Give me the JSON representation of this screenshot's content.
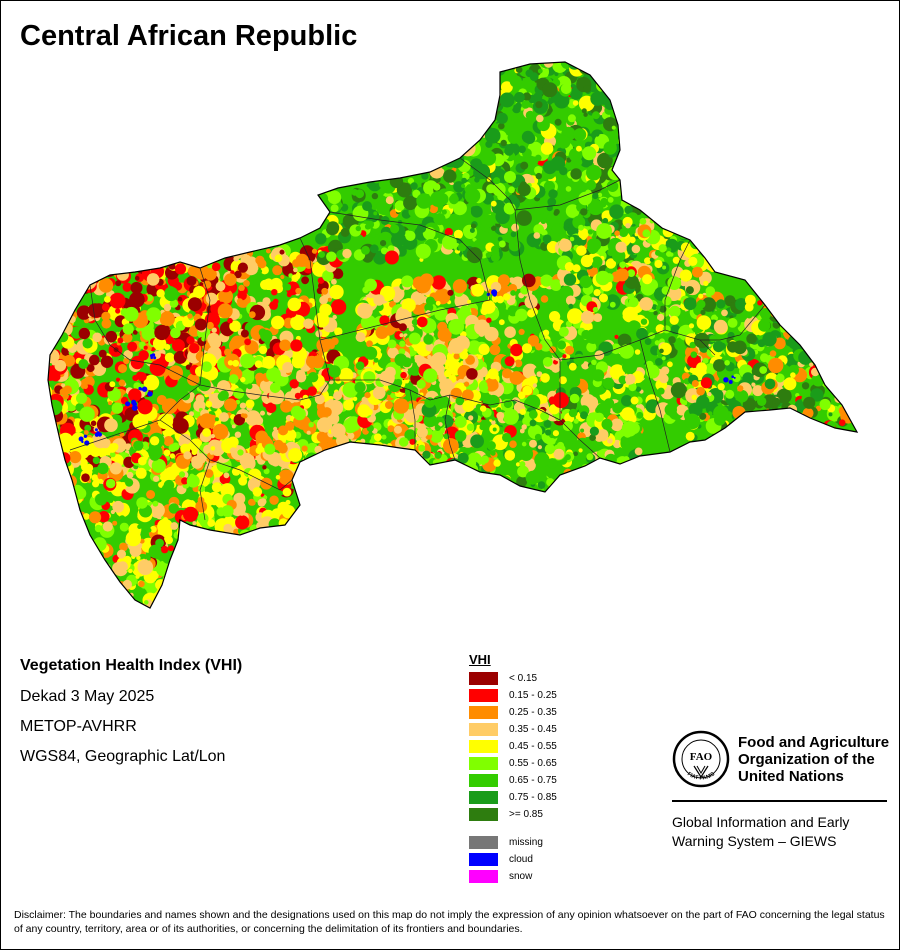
{
  "title": "Central African Republic",
  "info": {
    "index_name": "Vegetation Health Index (VHI)",
    "dekad": "Dekad 3 May 2025",
    "sensor": "METOP-AVHRR",
    "projection": "WGS84, Geographic Lat/Lon"
  },
  "legend": {
    "title": "VHI",
    "classes": [
      {
        "label": "< 0.15",
        "color": "#9b0000"
      },
      {
        "label": "0.15 - 0.25",
        "color": "#ff0000"
      },
      {
        "label": "0.25 - 0.35",
        "color": "#ff8c00"
      },
      {
        "label": "0.35 - 0.45",
        "color": "#ffcc66"
      },
      {
        "label": "0.45 - 0.55",
        "color": "#ffff00"
      },
      {
        "label": "0.55 - 0.65",
        "color": "#80ff00"
      },
      {
        "label": "0.65 - 0.75",
        "color": "#33cc00"
      },
      {
        "label": "0.75 - 0.85",
        "color": "#1a9c1a"
      },
      {
        "label": ">= 0.85",
        "color": "#2e7d0f"
      }
    ],
    "special": [
      {
        "label": "missing",
        "color": "#777777"
      },
      {
        "label": "cloud",
        "color": "#0000ff"
      },
      {
        "label": "snow",
        "color": "#ff00ff"
      }
    ]
  },
  "org": {
    "name_lines": [
      "Food and Agriculture",
      "Organization of the",
      "United Nations"
    ],
    "logo_text": "FAO",
    "logo_motto": "FIAT PANIS",
    "program_lines": [
      "Global Information and Early",
      "Warning System – GIEWS"
    ]
  },
  "disclaimer": "Disclaimer: The boundaries and names shown and the designations used on this map do not imply the expression of any opinion whatsoever on the part of FAO concerning the legal status of any country, territory, area or of its authorities, or concerning the delimitation of its frontiers and boundaries."
}
